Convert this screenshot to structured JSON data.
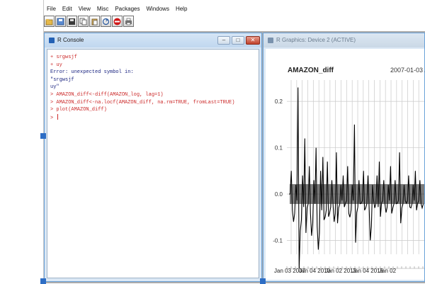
{
  "menu": [
    "File",
    "Edit",
    "View",
    "Misc",
    "Packages",
    "Windows",
    "Help"
  ],
  "toolbar": [
    {
      "icon": "open-script-icon"
    },
    {
      "icon": "load-workspace-icon"
    },
    {
      "icon": "save-workspace-icon"
    },
    {
      "icon": "copy-icon"
    },
    {
      "icon": "paste-icon"
    },
    {
      "icon": "copy-paste-icon"
    },
    {
      "icon": "stop-icon"
    },
    {
      "icon": "print-icon"
    }
  ],
  "console": {
    "title": "R Console",
    "lines": [
      {
        "text": "+ srgwsjf",
        "kind": "input"
      },
      {
        "text": "+ uy",
        "kind": "input"
      },
      {
        "text": "Error: unexpected symbol in:",
        "kind": "output"
      },
      {
        "text": "\"srgwsjf",
        "kind": "output"
      },
      {
        "text": "uy\"",
        "kind": "output"
      },
      {
        "text": "> AMAZON_diff<-diff(AMAZON_log, lag=1)",
        "kind": "input"
      },
      {
        "text": "> AMAZON_diff<-na.locf(AMAZON_diff, na.rm=TRUE, fromLast=TRUE)",
        "kind": "input"
      },
      {
        "text": "> plot(AMAZON_diff)",
        "kind": "input"
      },
      {
        "text": "> ",
        "kind": "input"
      }
    ]
  },
  "graphics": {
    "title": "R Graphics: Device 2 (ACTIVE)",
    "plot_title": "AMAZON_diff",
    "date_range": "2007-01-03 /"
  },
  "chart_data": {
    "type": "line",
    "title": "AMAZON_diff",
    "subtitle": "2007-01-03 /",
    "x_tick_labels": [
      "Jan 03 2007",
      "Jan 04 2010",
      "Jan 02 2013",
      "Jan 04 2016",
      "Jan 02"
    ],
    "y_tick_labels": [
      "0.2",
      "0.1",
      "0.0",
      "-0.1"
    ],
    "ylim": [
      -0.13,
      0.24
    ],
    "grid": true,
    "series": [
      {
        "color": "#000000",
        "values": [
          0.0,
          0.05,
          -0.06,
          0.02,
          0.23,
          -0.08,
          0.04,
          0.12,
          -0.03,
          0.06,
          -0.09,
          0.03,
          0.1,
          -0.12,
          0.05,
          0.08,
          -0.05,
          0.07,
          -0.04,
          0.03,
          -0.06,
          0.09,
          -0.03,
          0.02,
          0.04,
          -0.02,
          0.06,
          -0.05,
          0.02,
          0.15,
          -0.04,
          0.03,
          -0.02,
          0.05,
          -0.03,
          0.04,
          -0.1,
          0.02,
          -0.03,
          0.04,
          0.07,
          -0.02,
          0.03,
          -0.04,
          0.02,
          0.06,
          -0.03,
          0.03,
          -0.02,
          0.09,
          -0.03,
          0.02,
          -0.02,
          0.04,
          -0.03,
          0.02,
          0.05,
          -0.02,
          0.03,
          -0.03
        ]
      }
    ]
  }
}
